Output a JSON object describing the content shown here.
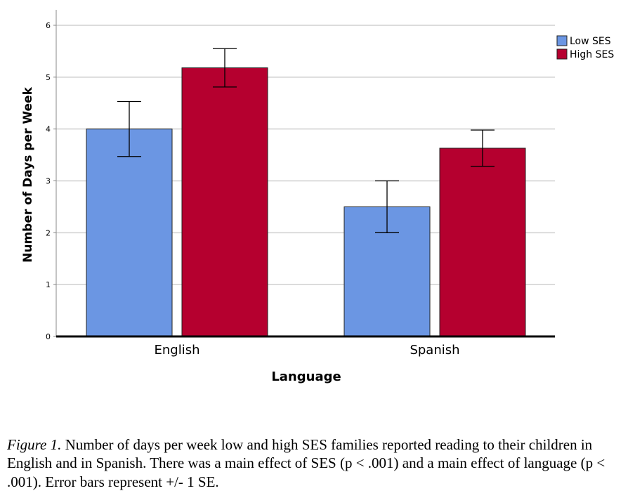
{
  "chart_data": {
    "type": "bar",
    "categories": [
      "English",
      "Spanish"
    ],
    "series": [
      {
        "name": "Low SES",
        "color": "#6b96e3",
        "values": [
          4.0,
          2.5
        ],
        "error": [
          0.53,
          0.5
        ]
      },
      {
        "name": "High SES",
        "color": "#b5002f",
        "values": [
          5.18,
          3.63
        ],
        "error": [
          0.37,
          0.35
        ]
      }
    ],
    "xlabel": "Language",
    "ylabel": "Number of Days per Week",
    "ylim": [
      0,
      6
    ],
    "yticks": [
      "0",
      "1",
      "2",
      "3",
      "4",
      "5",
      "6"
    ],
    "grid": true,
    "legend_position": "top-right"
  },
  "caption": {
    "label": "Figure 1.",
    "text": " Number of days per week low and high SES families reported reading to their children in English and in Spanish. There was a main effect of SES (p < .001) and a main effect of language (p < .001). Error bars represent +/- 1 SE."
  }
}
